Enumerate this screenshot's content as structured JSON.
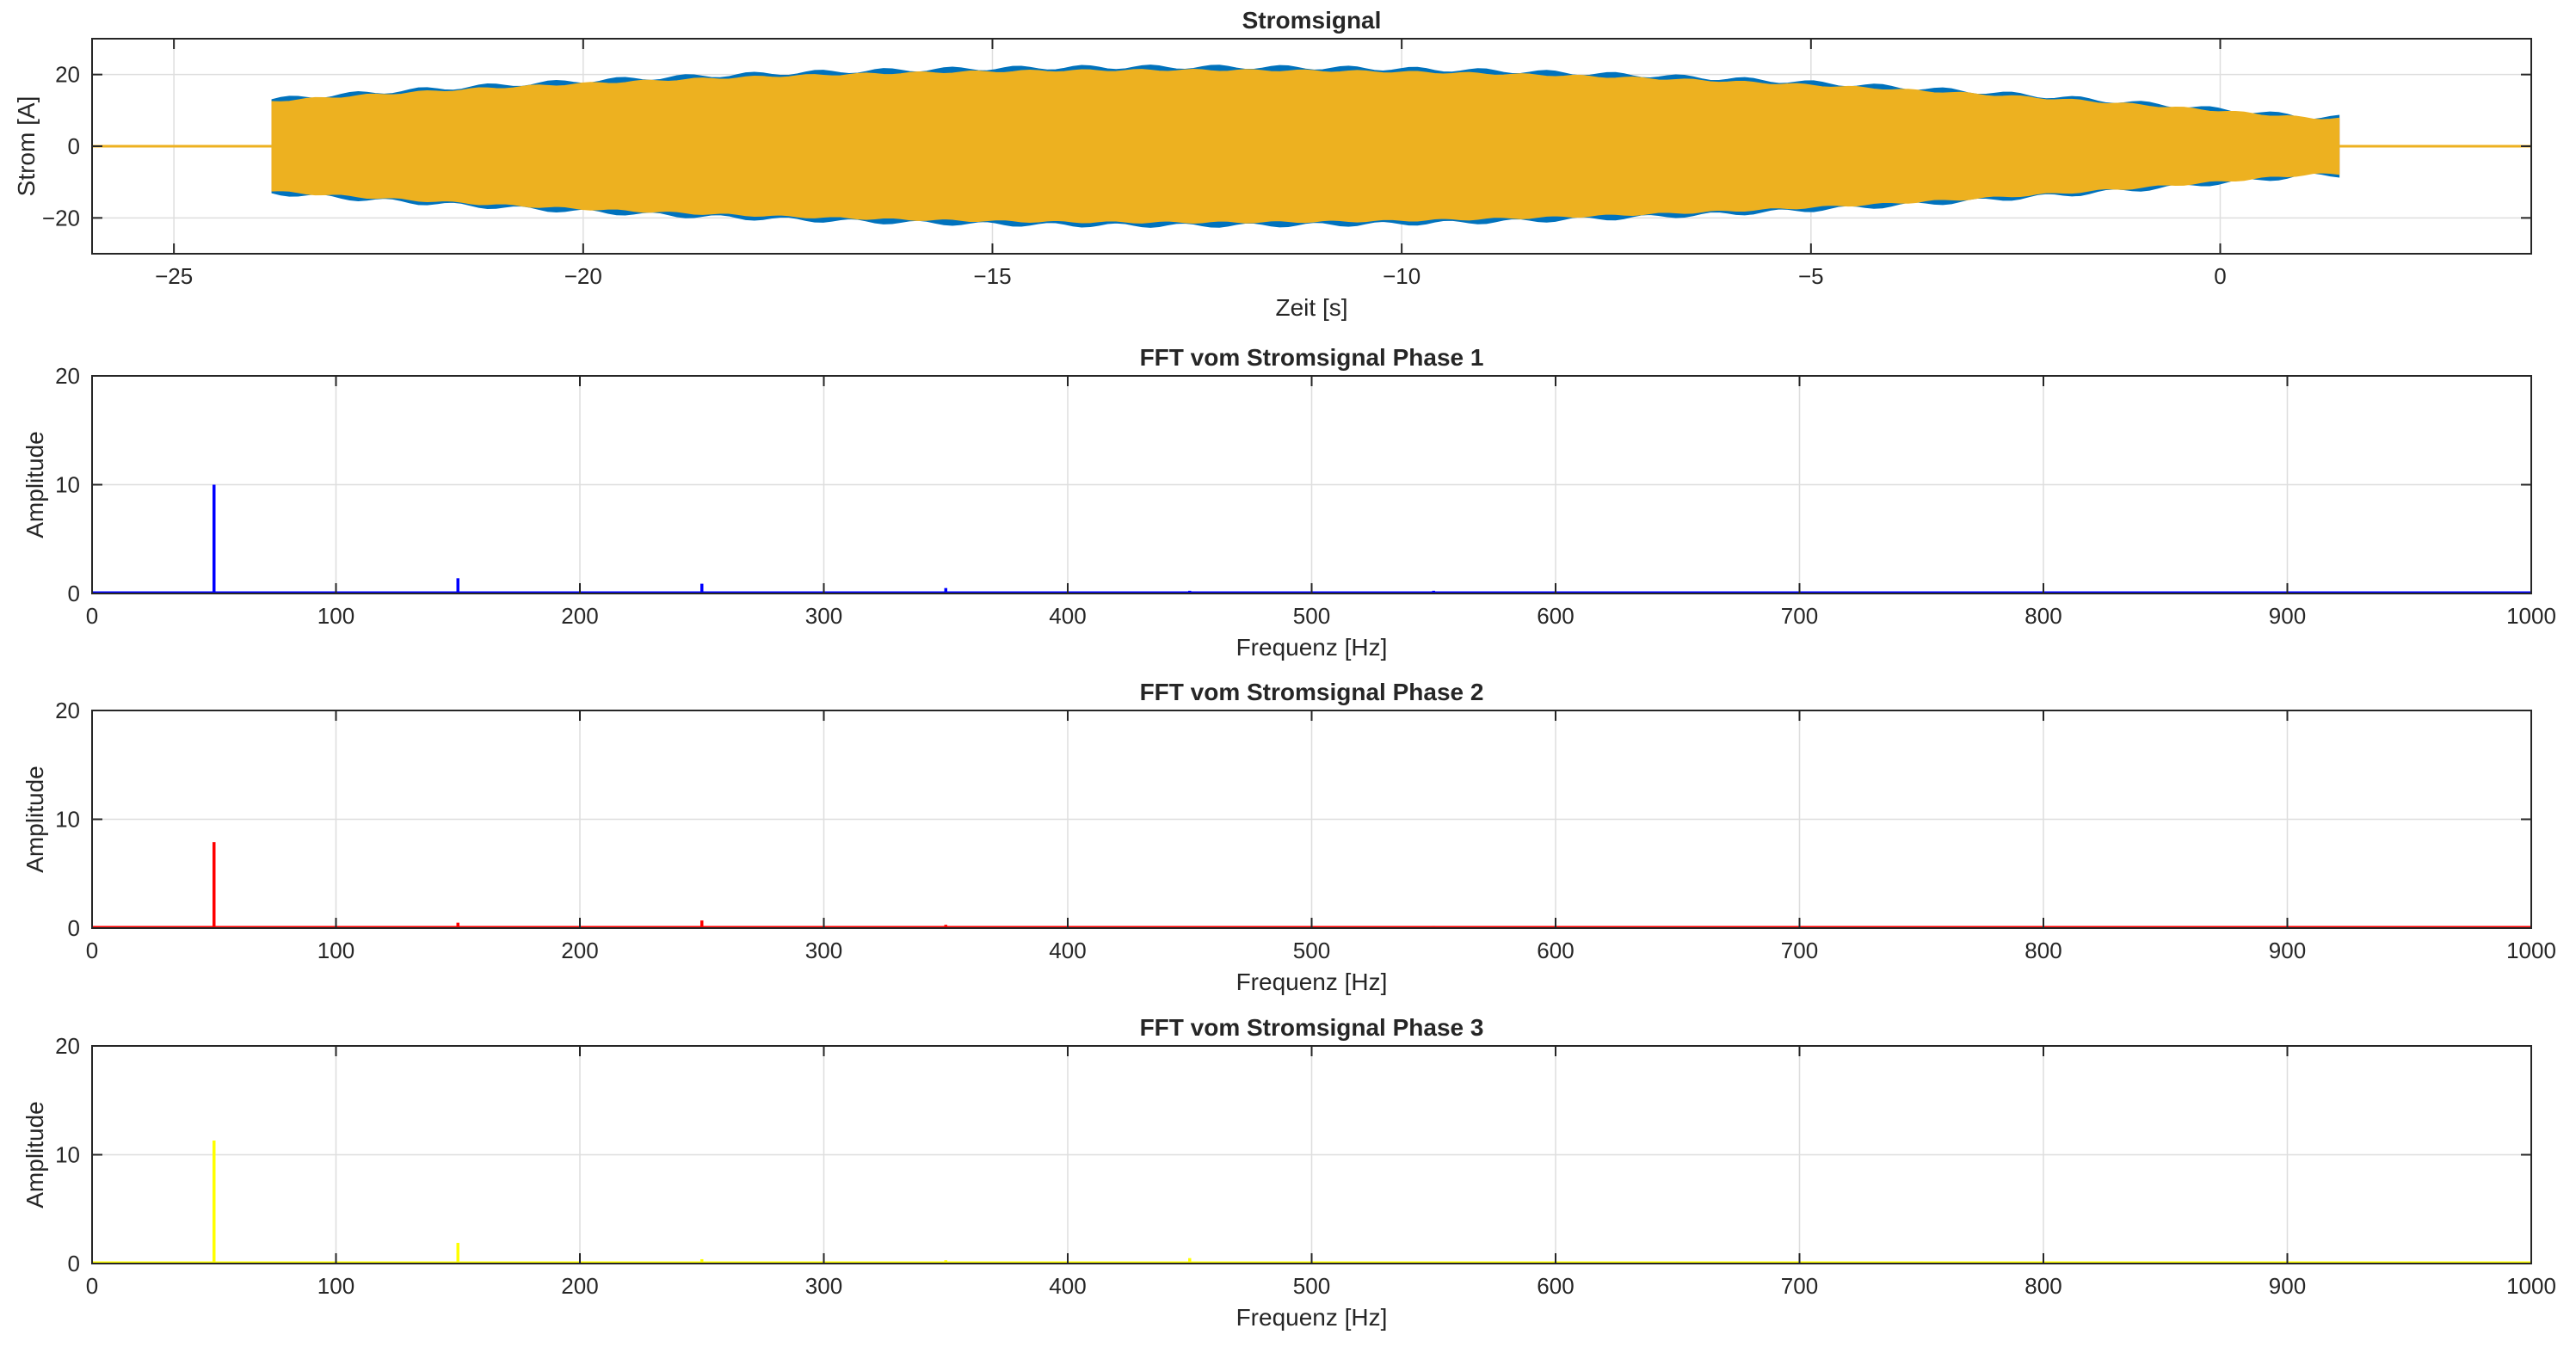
{
  "chart_data": [
    {
      "type": "line",
      "title": "Stromsignal",
      "xlabel": "Zeit [s]",
      "ylabel": "Strom [A]",
      "xlim": [
        -26,
        3.8
      ],
      "ylim": [
        -30,
        30
      ],
      "xticks": [
        -25,
        -20,
        -15,
        -10,
        -5,
        0
      ],
      "yticks": [
        -20,
        0,
        20
      ],
      "grid": true,
      "signal": {
        "t_start": -23.8,
        "t_end": 1.45,
        "step_amplitude": 8,
        "peak_amplitude": 22,
        "peak_time": -12.7,
        "idle_value": 0
      },
      "series": [
        {
          "color": "#0072BD"
        },
        {
          "color": "#D95319"
        },
        {
          "color": "#EDB120"
        }
      ]
    },
    {
      "type": "line",
      "title": "FFT vom Stromsignal Phase 1",
      "xlabel": "Frequenz [Hz]",
      "ylabel": "Amplitude",
      "xlim": [
        0,
        1000
      ],
      "ylim": [
        0,
        20
      ],
      "xticks": [
        0,
        100,
        200,
        300,
        400,
        500,
        600,
        700,
        800,
        900,
        1000
      ],
      "yticks": [
        0,
        10,
        20
      ],
      "grid": true,
      "color": "#0000FF",
      "peaks": [
        {
          "f": 50,
          "a": 10.0
        },
        {
          "f": 150,
          "a": 1.4
        },
        {
          "f": 250,
          "a": 0.9
        },
        {
          "f": 350,
          "a": 0.5
        },
        {
          "f": 450,
          "a": 0.25
        },
        {
          "f": 550,
          "a": 0.25
        }
      ]
    },
    {
      "type": "line",
      "title": "FFT vom Stromsignal Phase 2",
      "xlabel": "Frequenz [Hz]",
      "ylabel": "Amplitude",
      "xlim": [
        0,
        1000
      ],
      "ylim": [
        0,
        20
      ],
      "xticks": [
        0,
        100,
        200,
        300,
        400,
        500,
        600,
        700,
        800,
        900,
        1000
      ],
      "yticks": [
        0,
        10,
        20
      ],
      "grid": true,
      "color": "#FF0000",
      "peaks": [
        {
          "f": 50,
          "a": 7.9
        },
        {
          "f": 150,
          "a": 0.5
        },
        {
          "f": 250,
          "a": 0.7
        },
        {
          "f": 350,
          "a": 0.3
        },
        {
          "f": 550,
          "a": 0.2
        }
      ]
    },
    {
      "type": "line",
      "title": "FFT vom Stromsignal Phase 3",
      "xlabel": "Frequenz [Hz]",
      "ylabel": "Amplitude",
      "xlim": [
        0,
        1000
      ],
      "ylim": [
        0,
        20
      ],
      "xticks": [
        0,
        100,
        200,
        300,
        400,
        500,
        600,
        700,
        800,
        900,
        1000
      ],
      "yticks": [
        0,
        10,
        20
      ],
      "grid": true,
      "color": "#FFFF00",
      "peaks": [
        {
          "f": 50,
          "a": 11.3
        },
        {
          "f": 150,
          "a": 1.9
        },
        {
          "f": 250,
          "a": 0.4
        },
        {
          "f": 350,
          "a": 0.3
        },
        {
          "f": 450,
          "a": 0.5
        },
        {
          "f": 650,
          "a": 0.2
        },
        {
          "f": 750,
          "a": 0.2
        },
        {
          "f": 950,
          "a": 0.2
        }
      ]
    }
  ]
}
